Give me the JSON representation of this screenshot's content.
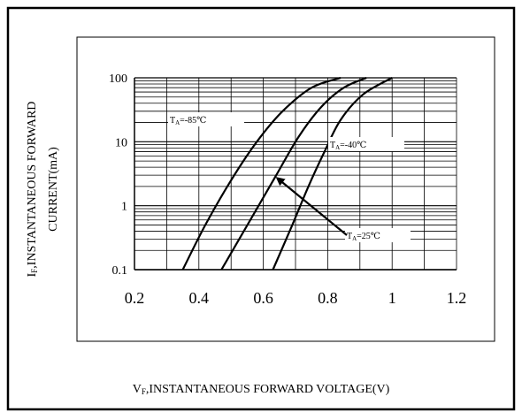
{
  "chart_data": {
    "type": "line",
    "xlabel_prefix": "V",
    "xlabel_sub": "F",
    "xlabel_rest": ",INSTANTANEOUS FORWARD VOLTAGE(V)",
    "ylabel_prefix": "I",
    "ylabel_sub": "F",
    "ylabel_line1_rest": ",INSTANTANEOUS FORWARD",
    "ylabel_line2": "CURRENT(mA)",
    "xlim": [
      0.2,
      1.2
    ],
    "ylim": [
      0.1,
      100
    ],
    "yscale": "log",
    "grid": true,
    "x_ticks": [
      "0.2",
      "0.4",
      "0.6",
      "0.8",
      "1",
      "1.2"
    ],
    "y_ticks": [
      "0.1",
      "1",
      "10",
      "100"
    ],
    "series": [
      {
        "name_prefix": "T",
        "name_sub": "A",
        "name_rest": "=-85℃",
        "points": [
          [
            0.35,
            0.1
          ],
          [
            0.42,
            0.5
          ],
          [
            0.5,
            2.5
          ],
          [
            0.58,
            10
          ],
          [
            0.66,
            30
          ],
          [
            0.75,
            70
          ],
          [
            0.84,
            100
          ]
        ]
      },
      {
        "name_prefix": "T",
        "name_sub": "A",
        "name_rest": "=-40℃",
        "points": [
          [
            0.47,
            0.1
          ],
          [
            0.56,
            0.6
          ],
          [
            0.64,
            3
          ],
          [
            0.71,
            12
          ],
          [
            0.78,
            35
          ],
          [
            0.85,
            70
          ],
          [
            0.92,
            100
          ]
        ]
      },
      {
        "name_prefix": "T",
        "name_sub": "A",
        "name_rest": "=25℃",
        "points": [
          [
            0.63,
            0.1
          ],
          [
            0.69,
            0.5
          ],
          [
            0.74,
            2
          ],
          [
            0.79,
            7
          ],
          [
            0.84,
            22
          ],
          [
            0.91,
            55
          ],
          [
            1.0,
            100
          ]
        ]
      }
    ]
  }
}
